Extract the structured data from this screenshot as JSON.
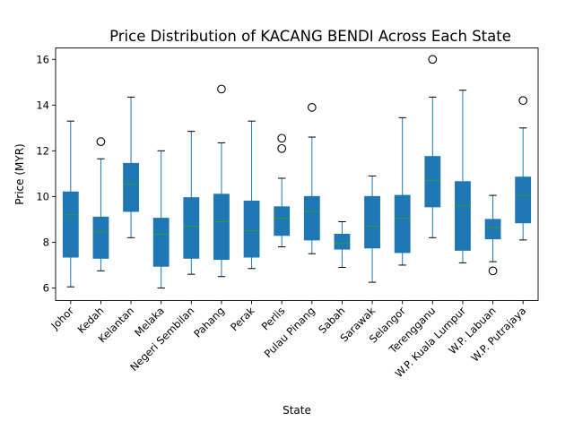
{
  "chart_data": {
    "type": "box",
    "title": "Price Distribution of KACANG BENDI Across Each State",
    "xlabel": "State",
    "ylabel": "Price (MYR)",
    "ylim": [
      5.45,
      16.5
    ],
    "yticks": [
      6,
      8,
      10,
      12,
      14,
      16
    ],
    "grid": false,
    "colors": {
      "box_fill": "#1f77b4",
      "median": "#2ca02c",
      "whisker": "#1f77b4",
      "flier": "#000000"
    },
    "categories": [
      "Johor",
      "Kedah",
      "Kelantan",
      "Melaka",
      "Negeri Sembilan",
      "Pahang",
      "Perak",
      "Perlis",
      "Pulau Pinang",
      "Sabah",
      "Sarawak",
      "Selangor",
      "Terengganu",
      "W.P. Kuala Lumpur",
      "W.P. Labuan",
      "W.P. Putrajaya"
    ],
    "boxes": [
      {
        "min": 6.05,
        "q1": 7.35,
        "median": 9.2,
        "q3": 10.2,
        "max": 13.3,
        "fliers": []
      },
      {
        "min": 6.75,
        "q1": 7.3,
        "median": 8.45,
        "q3": 9.1,
        "max": 11.65,
        "fliers": [
          12.4
        ]
      },
      {
        "min": 8.2,
        "q1": 9.35,
        "median": 10.55,
        "q3": 11.45,
        "max": 14.35,
        "fliers": []
      },
      {
        "min": 6.0,
        "q1": 6.95,
        "median": 8.35,
        "q3": 9.05,
        "max": 12.0,
        "fliers": []
      },
      {
        "min": 6.6,
        "q1": 7.3,
        "median": 8.7,
        "q3": 9.95,
        "max": 12.85,
        "fliers": []
      },
      {
        "min": 6.5,
        "q1": 7.25,
        "median": 8.9,
        "q3": 10.1,
        "max": 12.35,
        "fliers": [
          14.7
        ]
      },
      {
        "min": 6.85,
        "q1": 7.35,
        "median": 8.5,
        "q3": 9.8,
        "max": 13.3,
        "fliers": []
      },
      {
        "min": 7.8,
        "q1": 8.3,
        "median": 9.05,
        "q3": 9.55,
        "max": 10.8,
        "fliers": [
          12.1,
          12.55
        ]
      },
      {
        "min": 7.5,
        "q1": 8.1,
        "median": 9.35,
        "q3": 10.0,
        "max": 12.6,
        "fliers": [
          13.9
        ]
      },
      {
        "min": 6.9,
        "q1": 7.7,
        "median": 7.95,
        "q3": 8.35,
        "max": 8.9,
        "fliers": []
      },
      {
        "min": 6.25,
        "q1": 7.75,
        "median": 8.7,
        "q3": 10.0,
        "max": 10.9,
        "fliers": []
      },
      {
        "min": 7.0,
        "q1": 7.55,
        "median": 9.05,
        "q3": 10.05,
        "max": 13.45,
        "fliers": []
      },
      {
        "min": 8.2,
        "q1": 9.55,
        "median": 10.7,
        "q3": 11.75,
        "max": 14.35,
        "fliers": [
          16.0
        ]
      },
      {
        "min": 7.1,
        "q1": 7.65,
        "median": 9.6,
        "q3": 10.65,
        "max": 14.65,
        "fliers": []
      },
      {
        "min": 7.15,
        "q1": 8.15,
        "median": 8.65,
        "q3": 9.0,
        "max": 10.05,
        "fliers": [
          6.75
        ]
      },
      {
        "min": 8.1,
        "q1": 8.85,
        "median": 10.05,
        "q3": 10.85,
        "max": 13.0,
        "fliers": [
          14.2
        ]
      }
    ]
  }
}
